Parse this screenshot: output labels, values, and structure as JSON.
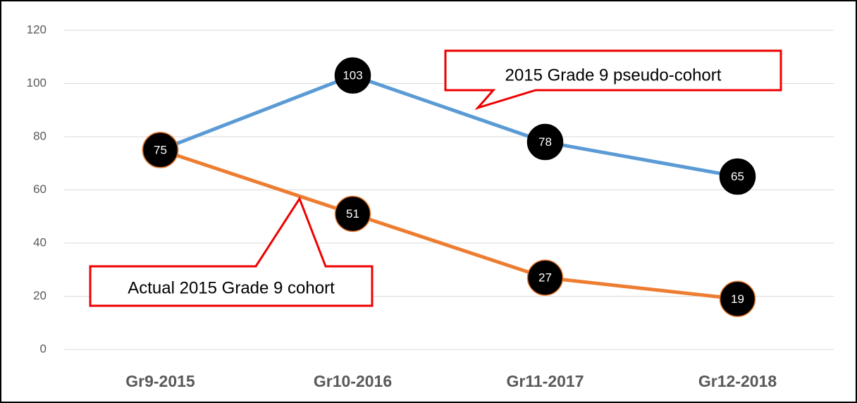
{
  "chart_data": {
    "type": "line",
    "categories": [
      "Gr9-2015",
      "Gr10-2016",
      "Gr11-2017",
      "Gr12-2018"
    ],
    "series": [
      {
        "name": "2015 Grade 9 pseudo-cohort",
        "color": "#5b9bd5",
        "values": [
          75,
          103,
          78,
          65
        ]
      },
      {
        "name": "Actual 2015 Grade 9 cohort",
        "color": "#ed7d31",
        "values": [
          75,
          51,
          27,
          19
        ]
      }
    ],
    "ylim": [
      0,
      120
    ],
    "yticks": [
      0,
      20,
      40,
      60,
      80,
      100,
      120
    ],
    "grid": true
  }
}
